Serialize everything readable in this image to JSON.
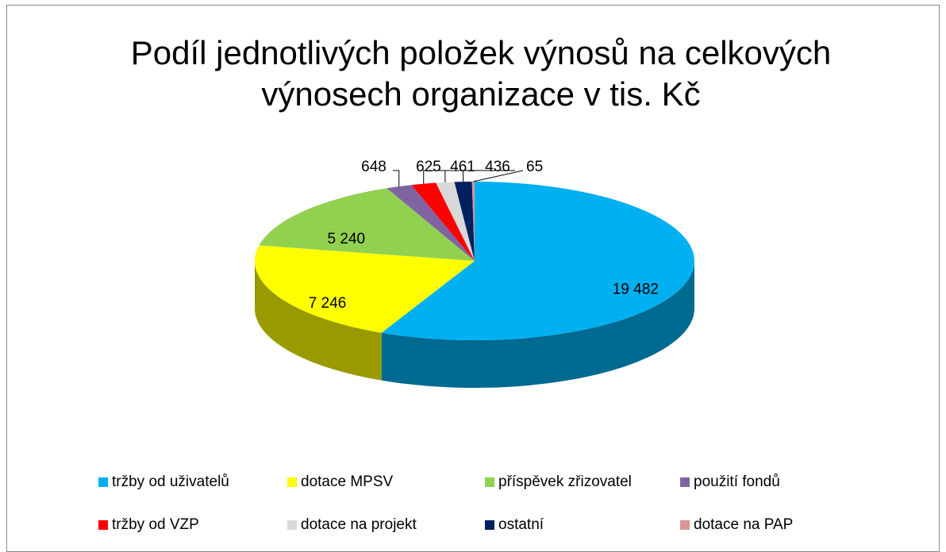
{
  "chart_data": {
    "type": "pie",
    "title": "Podíl jednotlivých položek výnosů na celkových výnosech organizace v tis. Kč",
    "categories": [
      "tržby od uživatelů",
      "dotace MPSV",
      "příspěvek zřizovatel",
      "použití fondů",
      "tržby od VZP",
      "dotace na projekt",
      "ostatní",
      "dotace na PAP"
    ],
    "values": [
      19482,
      7246,
      5240,
      648,
      625,
      461,
      436,
      65
    ],
    "value_labels": [
      "19 482",
      "7 246",
      "5 240",
      "648",
      "625",
      "461",
      "436",
      "65"
    ],
    "colors": [
      "#00b0f0",
      "#ffff00",
      "#92d050",
      "#8064a2",
      "#ff0000",
      "#d9d9d9",
      "#002060",
      "#d99694"
    ],
    "legend": "bottom"
  }
}
